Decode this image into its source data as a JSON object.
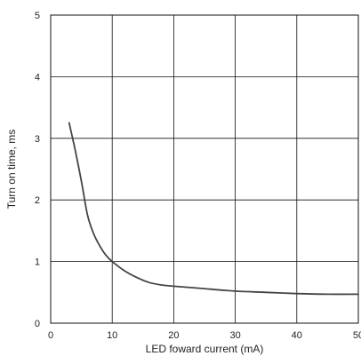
{
  "chart_data": {
    "type": "line",
    "title": "",
    "xlabel": "LED foward current (mA)",
    "ylabel": "Turn on time, ms",
    "xlim": [
      0,
      50
    ],
    "ylim": [
      0,
      5
    ],
    "xticks": [
      0,
      10,
      20,
      30,
      40,
      50
    ],
    "yticks": [
      0,
      1,
      2,
      3,
      4,
      5
    ],
    "xtick_labels": [
      "0",
      "10",
      "20",
      "30",
      "40",
      "50"
    ],
    "ytick_labels": [
      "0",
      "1",
      "2",
      "3",
      "4",
      "5"
    ],
    "grid": true,
    "series": [
      {
        "x": [
          3,
          4,
          5,
          6,
          7,
          8,
          9,
          10,
          12,
          14,
          16,
          18,
          20,
          25,
          30,
          35,
          40,
          45,
          50
        ],
        "y": [
          3.25,
          2.8,
          2.3,
          1.75,
          1.45,
          1.25,
          1.1,
          1.0,
          0.85,
          0.74,
          0.66,
          0.62,
          0.6,
          0.56,
          0.52,
          0.5,
          0.48,
          0.47,
          0.47
        ]
      }
    ],
    "colors": {
      "line": "#444444",
      "grid": "#111111",
      "frame": "#111111"
    }
  }
}
